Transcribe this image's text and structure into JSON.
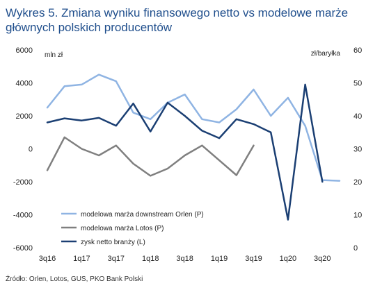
{
  "title": "Wykres 5. Zmiana wyniku finansowego netto vs modelowe marże głównych polskich producentów",
  "source": "Źródło: Orlen, Lotos, GUS, PKO Bank Polski",
  "chart_data": {
    "type": "line",
    "title": "Wykres 5. Zmiana wyniku finansowego netto vs modelowe marże głównych polskich producentów",
    "left_axis": {
      "label": "mln zł",
      "range": [
        -6000,
        6000
      ],
      "ticks": [
        -6000,
        -4000,
        -2000,
        0,
        2000,
        4000,
        6000
      ]
    },
    "right_axis": {
      "label": "zł/baryłka",
      "range": [
        0,
        60
      ],
      "ticks": [
        0,
        10,
        20,
        30,
        40,
        50,
        60
      ]
    },
    "x_tick_labels": [
      "3q16",
      "1q17",
      "3q17",
      "1q18",
      "3q18",
      "1q19",
      "3q19",
      "1q20",
      "3q20"
    ],
    "x_tick_positions": [
      0,
      2,
      4,
      6,
      8,
      10,
      12,
      14,
      16
    ],
    "x_range": [
      0,
      17
    ],
    "grid": false,
    "legend_position": "bottom-left",
    "series": [
      {
        "name": "modelowa marża downstream Orlen (P)",
        "axis": "right",
        "color": "#8fb4e3",
        "width": 2.5,
        "x": [
          0,
          1,
          2,
          3,
          4,
          5,
          6,
          7,
          8,
          9,
          10,
          11,
          12,
          13,
          14,
          15,
          16,
          17
        ],
        "values": [
          42.5,
          49,
          49.5,
          52.5,
          50.5,
          41,
          39,
          44,
          46.5,
          39,
          38,
          42,
          48,
          40,
          45.5,
          37,
          20.5,
          20.3
        ]
      },
      {
        "name": "modelowa marża Lotos (P)",
        "axis": "right",
        "color": "#7f7f7f",
        "width": 2.5,
        "x": [
          0,
          1,
          2,
          3,
          4,
          5,
          6,
          7,
          8,
          9,
          10,
          11,
          12
        ],
        "values": [
          23.5,
          33.5,
          30,
          28,
          31,
          25.5,
          21.8,
          24,
          28,
          31,
          26.5,
          22,
          31
        ]
      },
      {
        "name": "zysk netto branży (L)",
        "axis": "left",
        "color": "#1b3f73",
        "width": 2.5,
        "x": [
          0,
          1,
          2,
          3,
          4,
          5,
          6,
          7,
          8,
          9,
          10,
          11,
          12,
          13,
          14,
          15,
          16
        ],
        "values": [
          1600,
          1850,
          1720,
          1880,
          1400,
          2750,
          1050,
          2800,
          2000,
          1100,
          650,
          1800,
          1500,
          1000,
          -4300,
          3900,
          -2000
        ]
      }
    ]
  }
}
